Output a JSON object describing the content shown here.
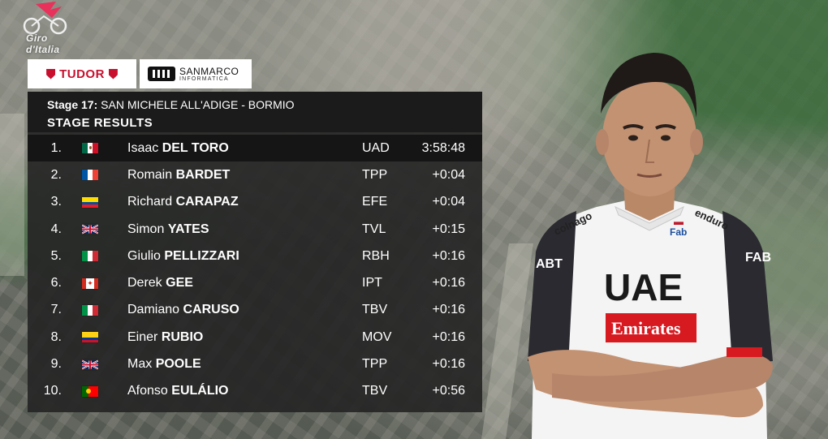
{
  "branding": {
    "race_logo_text": "Giro d'Italia",
    "sponsors": [
      {
        "name": "TUDOR"
      },
      {
        "name": "SANMARCO",
        "subtitle": "INFORMATICA"
      }
    ]
  },
  "panel": {
    "stage_prefix": "Stage 17:",
    "stage_route": "SAN MICHELE ALL'ADIGE - BORMIO",
    "title": "STAGE RESULTS"
  },
  "results": [
    {
      "rank": "1.",
      "flag": "mexico-flag",
      "first": "Isaac",
      "last": "DEL TORO",
      "team": "UAD",
      "time": "3:58:48"
    },
    {
      "rank": "2.",
      "flag": "france-flag",
      "first": "Romain",
      "last": "BARDET",
      "team": "TPP",
      "time": "+0:04"
    },
    {
      "rank": "3.",
      "flag": "ecuador-flag",
      "first": "Richard",
      "last": "CARAPAZ",
      "team": "EFE",
      "time": "+0:04"
    },
    {
      "rank": "4.",
      "flag": "uk-flag",
      "first": "Simon",
      "last": "YATES",
      "team": "TVL",
      "time": "+0:15"
    },
    {
      "rank": "5.",
      "flag": "italy-flag",
      "first": "Giulio",
      "last": "PELLIZZARI",
      "team": "RBH",
      "time": "+0:16"
    },
    {
      "rank": "6.",
      "flag": "canada-flag",
      "first": "Derek",
      "last": "GEE",
      "team": "IPT",
      "time": "+0:16"
    },
    {
      "rank": "7.",
      "flag": "italy-flag",
      "first": "Damiano",
      "last": "CARUSO",
      "team": "TBV",
      "time": "+0:16"
    },
    {
      "rank": "8.",
      "flag": "colombia-flag",
      "first": "Einer",
      "last": "RUBIO",
      "team": "MOV",
      "time": "+0:16"
    },
    {
      "rank": "9.",
      "flag": "uk-flag",
      "first": "Max",
      "last": "POOLE",
      "team": "TPP",
      "time": "+0:16"
    },
    {
      "rank": "10.",
      "flag": "portugal-flag",
      "first": "Afonso",
      "last": "EULÁLIO",
      "team": "TBV",
      "time": "+0:56"
    }
  ],
  "rider_jersey": {
    "main": "UAE",
    "sponsor": "Emirates",
    "sleeve_left": "ABT",
    "sleeve_right": "FAB",
    "chest_left": "colnago",
    "chest_right": "Fab",
    "shoulder_right": "enduro"
  },
  "colors": {
    "panel_bg": "#232323",
    "tudor_red": "#c8102e",
    "emirates_red": "#d71920"
  }
}
